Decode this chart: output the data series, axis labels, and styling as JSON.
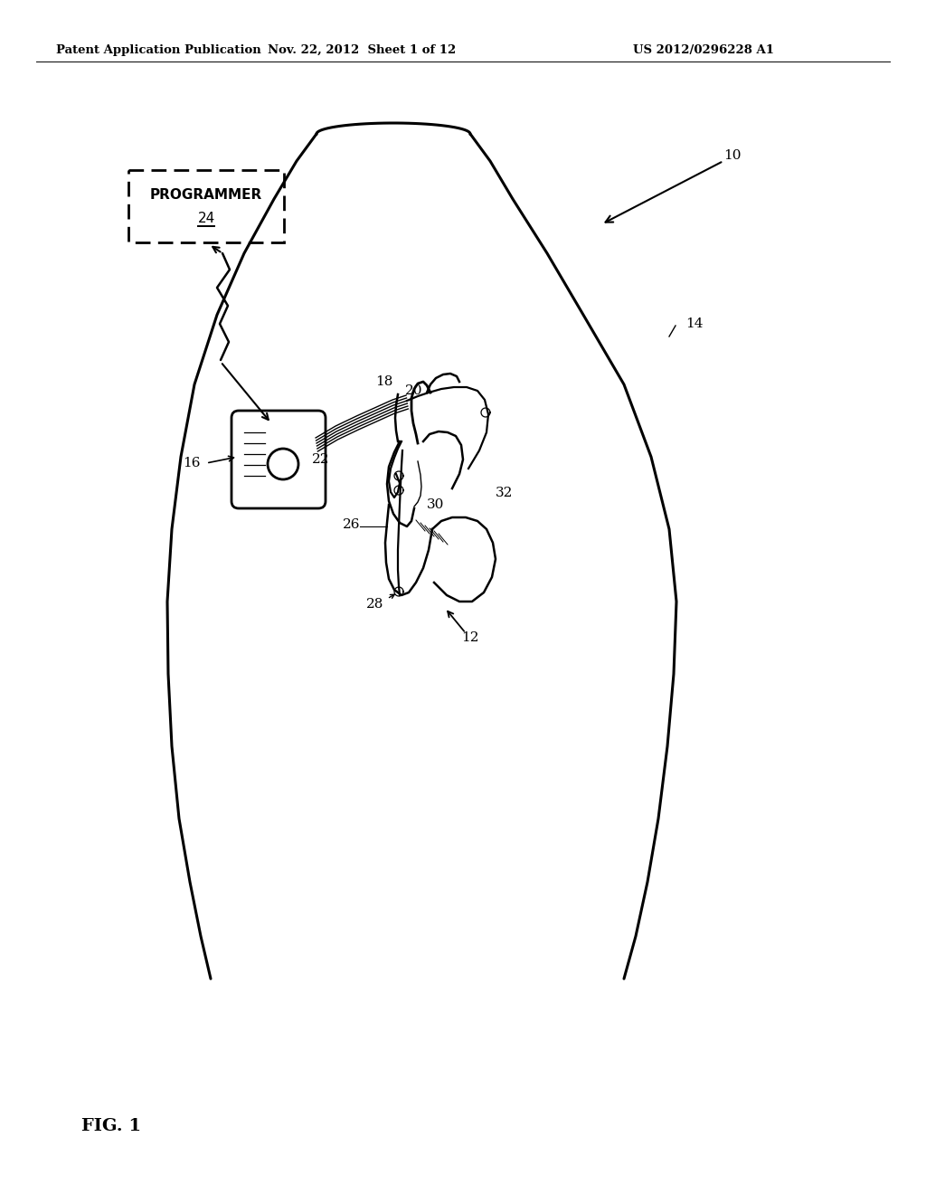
{
  "bg_color": "#ffffff",
  "header_left": "Patent Application Publication",
  "header_mid": "Nov. 22, 2012  Sheet 1 of 12",
  "header_right": "US 2012/0296228 A1",
  "fig_label": "FIG. 1",
  "label_10": "10",
  "label_12": "12",
  "label_14": "14",
  "label_16": "16",
  "label_18": "18",
  "label_20": "20",
  "label_22": "22",
  "label_24": "24",
  "label_26": "26",
  "label_28": "28",
  "label_30": "30",
  "label_32": "32",
  "programmer_text": "PROGRAMMER",
  "programmer_num": "24",
  "line_color": "#000000",
  "body_lw": 2.2,
  "lead_lw": 1.6
}
